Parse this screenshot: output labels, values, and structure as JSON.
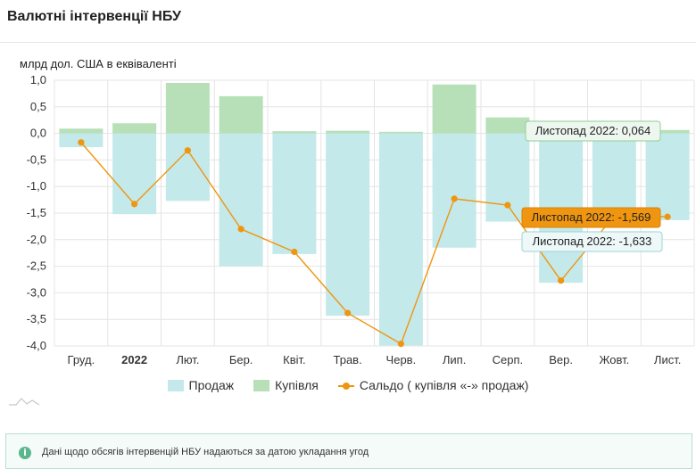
{
  "header": {
    "title": "Валютні інтервенції НБУ"
  },
  "unit_label": "млрд дол. США в еквіваленті",
  "note": {
    "icon": "info-icon",
    "text": "Дані щодо обсягів інтервенцій НБУ надаються за датою укладання угод"
  },
  "colors": {
    "sales": "#c3e9ea",
    "purchases": "#b7e0b9",
    "balance": "#f0950f",
    "grid": "#e4e4e4"
  },
  "chart_data": {
    "type": "bar",
    "title": "",
    "xlabel": "",
    "ylabel": "млрд дол. США в еквіваленті",
    "ylim": [
      -4.0,
      1.0
    ],
    "yticks": [
      "1,0",
      "0,5",
      "0,0",
      "-0,5",
      "-1,0",
      "-1,5",
      "-2,0",
      "-2,5",
      "-3,0",
      "-3,5",
      "-4,0"
    ],
    "ytick_values": [
      1.0,
      0.5,
      0.0,
      -0.5,
      -1.0,
      -1.5,
      -2.0,
      -2.5,
      -3.0,
      -3.5,
      -4.0
    ],
    "categories": [
      "Груд.",
      "2022",
      "Лют.",
      "Бер.",
      "Квіт.",
      "Трав.",
      "Черв.",
      "Лип.",
      "Серп.",
      "Вер.",
      "Жовт.",
      "Лист."
    ],
    "bold_categories": [
      "2022"
    ],
    "grid": true,
    "legend_position": "bottom",
    "series": [
      {
        "name": "Продаж",
        "kind": "bar",
        "values": [
          -0.26,
          -1.52,
          -1.27,
          -2.5,
          -2.27,
          -3.43,
          -3.99,
          -2.15,
          -1.66,
          -2.81,
          -1.6,
          -1.633
        ]
      },
      {
        "name": "Купівля",
        "kind": "bar",
        "values": [
          0.09,
          0.19,
          0.95,
          0.7,
          0.04,
          0.05,
          0.03,
          0.92,
          0.3,
          0.04,
          0.05,
          0.064
        ]
      },
      {
        "name": "Сальдо ( купівля «-» продаж)",
        "kind": "line",
        "values": [
          -0.17,
          -1.33,
          -0.32,
          -1.8,
          -2.23,
          -3.38,
          -3.96,
          -1.23,
          -1.35,
          -2.77,
          -1.55,
          -1.569
        ]
      }
    ],
    "tooltips": [
      {
        "series": "Купівля",
        "text": "Листопад 2022: 0,064"
      },
      {
        "series": "Сальдо ( купівля «-» продаж)",
        "text": "Листопад 2022: -1,569"
      },
      {
        "series": "Продаж",
        "text": "Листопад 2022: -1,633"
      }
    ]
  }
}
